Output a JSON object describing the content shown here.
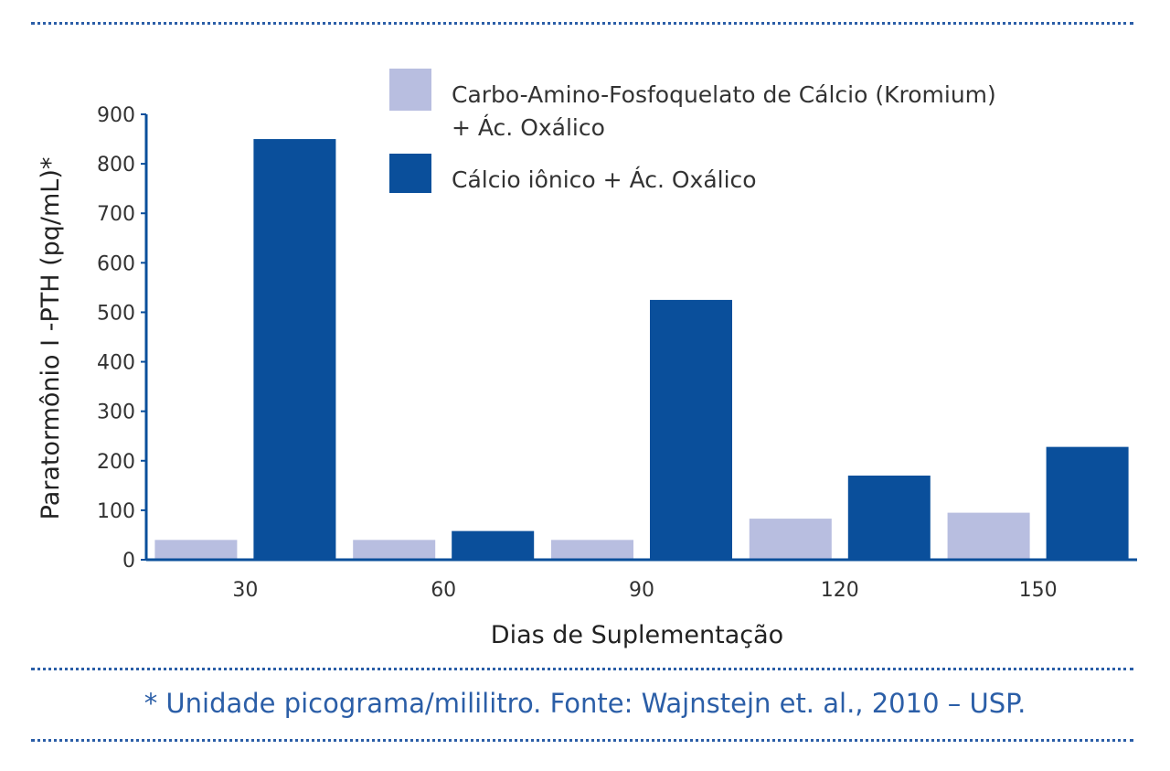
{
  "chart_data": {
    "type": "bar",
    "categories": [
      "30",
      "60",
      "90",
      "120",
      "150"
    ],
    "series": [
      {
        "name": "Carbo-Amino-Fosfoquelato de Cálcio (Kromium)\n+ Ác. Oxálico",
        "color": "#b8bee0",
        "values": [
          40,
          40,
          40,
          83,
          95
        ]
      },
      {
        "name": "Cálcio iônico + Ác. Oxálico",
        "color": "#0a4f9b",
        "values": [
          850,
          58,
          525,
          170,
          228
        ]
      }
    ],
    "ylim": [
      0,
      900
    ],
    "yticks": [
      "0",
      "100",
      "200",
      "300",
      "400",
      "500",
      "600",
      "700",
      "800",
      "900"
    ],
    "xlabel": "Dias de Suplementação",
    "ylabel": "Paratormônio I -PTH (pq/mL)*",
    "legend_position": "top-right",
    "grid": false,
    "axis_color": "#0a4f9b"
  },
  "footnote": "* Unidade picograma/mililitro. Fonte: Wajnstejn et. al., 2010 – USP."
}
